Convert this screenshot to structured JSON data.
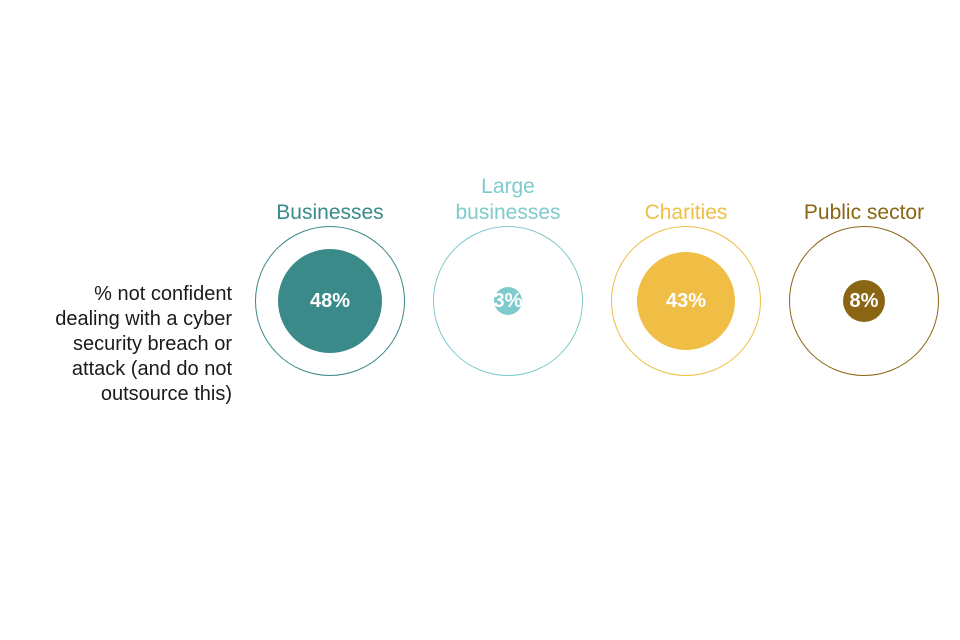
{
  "chart_data": {
    "type": "bubble",
    "row_label": "% not confident dealing with a cyber security breach or attack (and do not outsource this)",
    "categories": [
      {
        "name": "Businesses",
        "value": 48,
        "value_label": "48%",
        "color": "#3A8A8A"
      },
      {
        "name": "Large businesses",
        "value": 3,
        "value_label": "3%",
        "color": "#7ECACC"
      },
      {
        "name": "Charities",
        "value": 43,
        "value_label": "43%",
        "color": "#F0BE45"
      },
      {
        "name": "Public sector",
        "value": 8,
        "value_label": "8%",
        "color": "#8A6514"
      }
    ],
    "scale_max": 100
  }
}
